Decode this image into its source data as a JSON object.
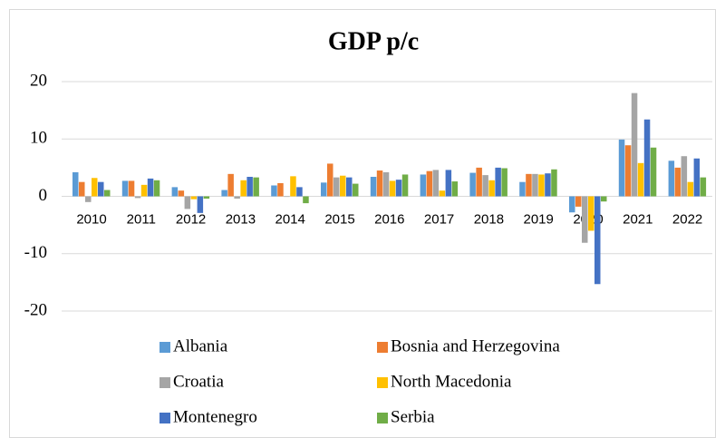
{
  "chart_data": {
    "type": "bar",
    "title": "GDP p/c",
    "categories": [
      "2010",
      "2011",
      "2012",
      "2013",
      "2014",
      "2015",
      "2016",
      "2017",
      "2018",
      "2019",
      "2020",
      "2021",
      "2022"
    ],
    "series": [
      {
        "name": "Albania",
        "color": "#5b9bd5",
        "values": [
          4.2,
          2.7,
          1.6,
          1.1,
          1.9,
          2.4,
          3.4,
          3.8,
          4.1,
          2.5,
          -2.8,
          9.9,
          6.2
        ]
      },
      {
        "name": "Bosnia and Herzegovina",
        "color": "#ed7d31",
        "values": [
          2.5,
          2.7,
          1.0,
          3.9,
          2.3,
          5.7,
          4.5,
          4.4,
          5.0,
          3.9,
          -1.8,
          8.9,
          5.0
        ]
      },
      {
        "name": "Croatia",
        "color": "#a5a5a5",
        "values": [
          -1.0,
          -0.3,
          -2.2,
          -0.4,
          -0.1,
          3.3,
          4.2,
          4.6,
          3.7,
          3.9,
          -8.1,
          18.0,
          7.0
        ]
      },
      {
        "name": "North Macedonia",
        "color": "#ffc000",
        "values": [
          3.2,
          2.0,
          -0.5,
          2.8,
          3.5,
          3.6,
          2.7,
          1.0,
          2.8,
          3.8,
          -6.0,
          5.8,
          2.5
        ]
      },
      {
        "name": "Montenegro",
        "color": "#4472c4",
        "values": [
          2.5,
          3.1,
          -2.9,
          3.4,
          1.6,
          3.3,
          2.9,
          4.6,
          5.0,
          4.0,
          -15.3,
          13.4,
          6.6
        ]
      },
      {
        "name": "Serbia",
        "color": "#70ad47",
        "values": [
          1.1,
          2.8,
          -0.4,
          3.3,
          -1.2,
          2.2,
          3.8,
          2.6,
          4.9,
          4.7,
          -0.9,
          8.5,
          3.3
        ]
      }
    ],
    "ylim": [
      -20,
      20
    ],
    "yticks": [
      -20,
      -10,
      0,
      10,
      20
    ],
    "grid": true,
    "legend": "bottom"
  }
}
